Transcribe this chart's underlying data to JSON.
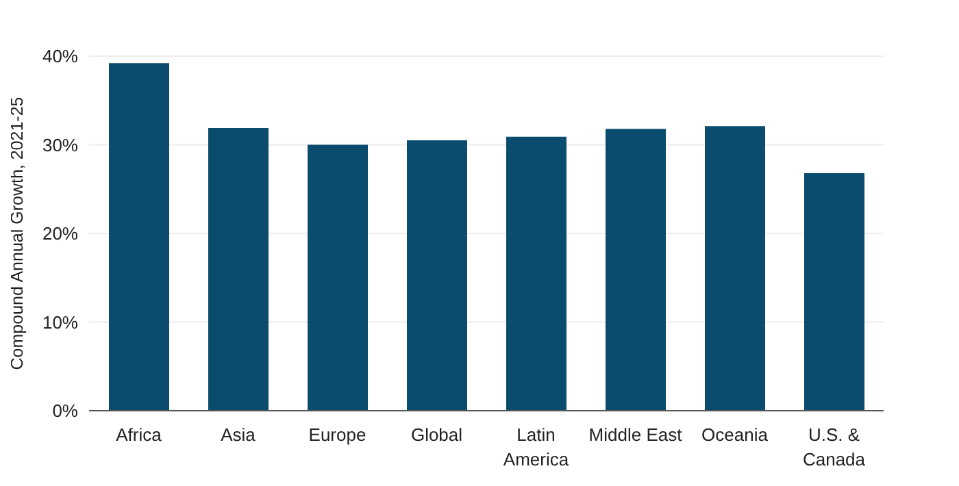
{
  "chart_data": {
    "type": "bar",
    "ylabel": "Compound Annual Growth, 2021-25",
    "categories": [
      "Africa",
      "Asia",
      "Europe",
      "Global",
      "Latin America",
      "Middle East",
      "Oceania",
      "U.S. & Canada"
    ],
    "values": [
      39.2,
      31.9,
      30.0,
      30.5,
      30.9,
      31.8,
      32.1,
      26.8
    ],
    "color": "#0a4c6d",
    "ylim": [
      0,
      40
    ],
    "yticks": [
      {
        "value": 0,
        "label": "0%"
      },
      {
        "value": 10,
        "label": "10%"
      },
      {
        "value": 20,
        "label": "20%"
      },
      {
        "value": 30,
        "label": "30%"
      },
      {
        "value": 40,
        "label": "40%"
      }
    ],
    "grid": "y"
  }
}
